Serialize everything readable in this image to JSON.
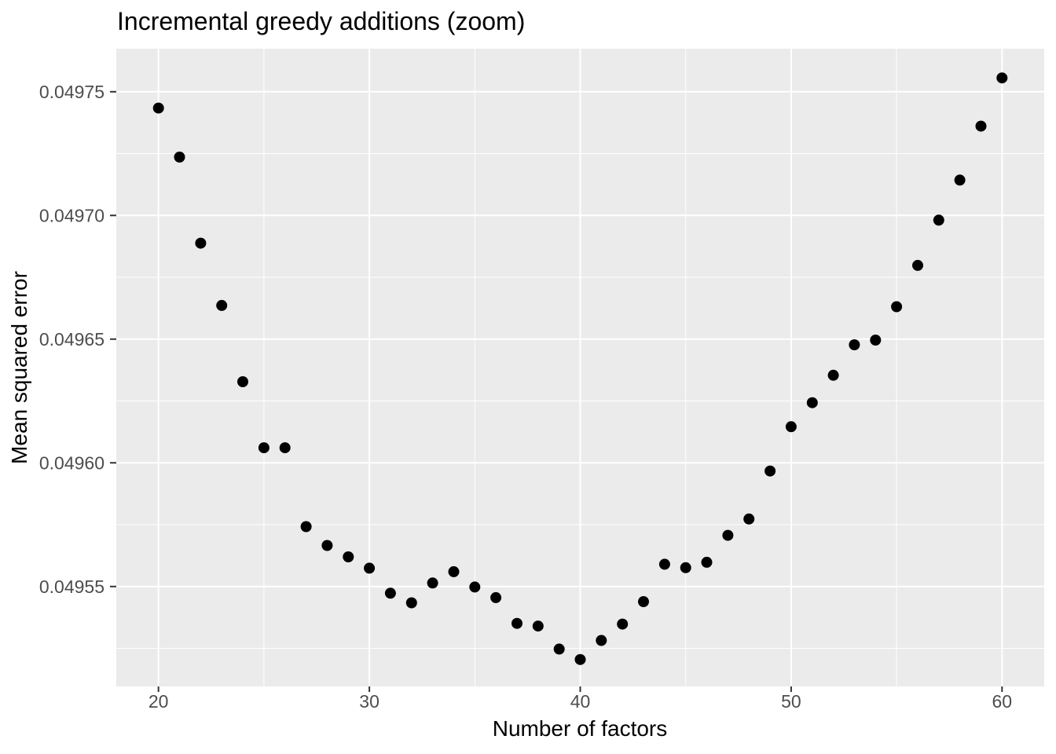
{
  "chart_data": {
    "type": "scatter",
    "title": "Incremental greedy additions (zoom)",
    "xlabel": "Number of factors",
    "ylabel": "Mean squared error",
    "x": [
      20,
      21,
      22,
      23,
      24,
      25,
      26,
      27,
      28,
      29,
      30,
      31,
      32,
      33,
      34,
      35,
      36,
      37,
      38,
      39,
      40,
      41,
      42,
      43,
      44,
      45,
      46,
      47,
      48,
      49,
      50,
      51,
      52,
      53,
      54,
      55,
      56,
      57,
      58,
      59,
      60
    ],
    "y": [
      0.0497434,
      0.0497236,
      0.0496888,
      0.0496636,
      0.0496328,
      0.0496061,
      0.0496061,
      0.0495742,
      0.0495666,
      0.049562,
      0.0495574,
      0.0495473,
      0.0495434,
      0.0495514,
      0.049556,
      0.0495498,
      0.0495455,
      0.0495351,
      0.049534,
      0.0495247,
      0.0495205,
      0.0495282,
      0.0495348,
      0.0495439,
      0.049559,
      0.0495576,
      0.0495598,
      0.0495707,
      0.0495773,
      0.0495967,
      0.0496146,
      0.0496243,
      0.0496354,
      0.0496477,
      0.0496496,
      0.0496631,
      0.0496798,
      0.0496981,
      0.0497143,
      0.0497361,
      0.0497556
    ],
    "xlim": [
      18,
      62
    ],
    "ylim": [
      0.0495096,
      0.0497674
    ],
    "x_major_ticks": [
      20,
      30,
      40,
      50,
      60
    ],
    "x_tick_labels": [
      "20",
      "30",
      "40",
      "50",
      "60"
    ],
    "x_minor_gridlines": [
      25,
      35,
      45,
      55
    ],
    "y_major_ticks": [
      0.04955,
      0.0496,
      0.04965,
      0.0497,
      0.04975
    ],
    "y_tick_labels": [
      "0.04955",
      "0.04960",
      "0.04965",
      "0.04970",
      "0.04975"
    ],
    "y_minor_gridlines": [
      0.049525,
      0.049575,
      0.049625,
      0.049675,
      0.049725
    ],
    "grid": "major-and-minor",
    "legend_position": "none",
    "point_shape": "filled-circle",
    "colors": {
      "panel_background": "#EBEBEB",
      "gridline": "#FFFFFF",
      "point": "#000000",
      "tick_mark": "#333333",
      "tick_label": "#4D4D4D",
      "axis_title": "#000000",
      "title": "#000000",
      "figure_background": "#FFFFFF"
    }
  }
}
